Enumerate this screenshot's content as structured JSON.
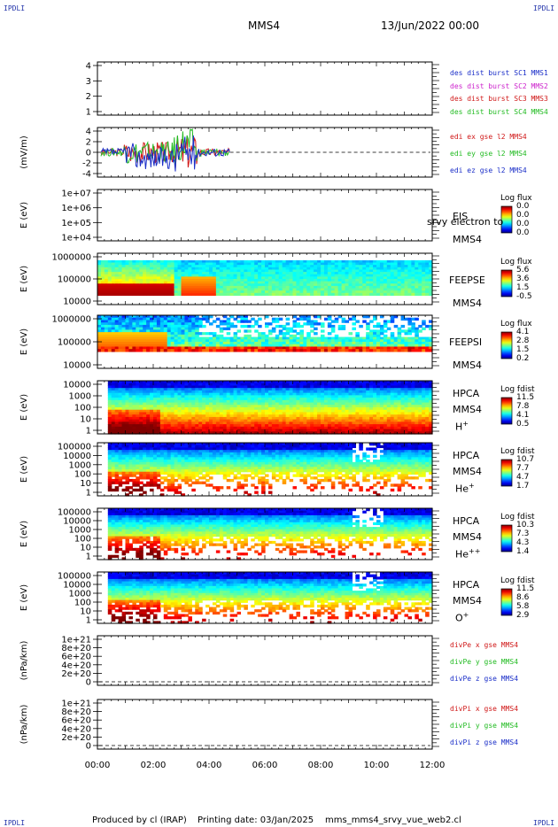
{
  "corner_label": "IPDLI",
  "header": {
    "title": "MMS4",
    "datetime": "13/Jun/2022 00:00"
  },
  "legend_colors": {
    "red": "#d01818",
    "green": "#22bb22",
    "blue": "#1a2ec8",
    "magenta": "#cc22cc"
  },
  "chart_data": [
    {
      "type": "line",
      "panel": "dist-burst",
      "ylabel": "",
      "yticks": [
        "4",
        "3",
        "2",
        "1"
      ],
      "ylim": [
        0.5,
        4.5
      ],
      "series": [
        {
          "name": "des dist burst SC1 MMS1",
          "color": "blue"
        },
        {
          "name": "des dist burst SC2 MMS2",
          "color": "magenta"
        },
        {
          "name": "des dist burst SC3 MMS3",
          "color": "red"
        },
        {
          "name": "des dist burst SC4 MMS4",
          "color": "green"
        }
      ]
    },
    {
      "type": "line",
      "panel": "edi-e-field",
      "ylabel": "(mV/m)",
      "yticks": [
        "4",
        "2",
        "0",
        "-2",
        "-4"
      ],
      "ylim": [
        -5,
        5
      ],
      "x_data_end": "04:45",
      "series": [
        {
          "name": "edi ex gse l2 MMS4",
          "color": "red"
        },
        {
          "name": "edi ey gse l2 MMS4",
          "color": "green"
        },
        {
          "name": "edi ez gse l2 MMS4",
          "color": "blue"
        }
      ]
    },
    {
      "type": "heatmap",
      "panel": "eis",
      "ylabel": "E (eV)",
      "yticks": [
        "1e+07",
        "1e+06",
        "1e+05",
        "1e+04"
      ],
      "instrument": "EIS",
      "spacecraft": "MMS4",
      "overlay_text": "srvy electron to",
      "colorbar_title": "Log flux",
      "colorbar_ticks": [
        "0.0",
        "0.0",
        "0.0",
        "0.0"
      ]
    },
    {
      "type": "heatmap",
      "panel": "feepse",
      "ylabel": "E (eV)",
      "yticks": [
        "1000000",
        "100000",
        "10000"
      ],
      "instrument": "FEEPSE",
      "spacecraft": "MMS4",
      "colorbar_title": "Log flux",
      "colorbar_ticks": [
        "5.6",
        "3.6",
        "1.5",
        "-0.5"
      ]
    },
    {
      "type": "heatmap",
      "panel": "feepsi",
      "ylabel": "E (eV)",
      "yticks": [
        "1000000",
        "100000",
        "10000"
      ],
      "instrument": "FEEPSI",
      "spacecraft": "MMS4",
      "colorbar_title": "Log flux",
      "colorbar_ticks": [
        "4.1",
        "2.8",
        "1.5",
        "0.2"
      ]
    },
    {
      "type": "heatmap",
      "panel": "hpca-h",
      "ylabel": "E (eV)",
      "yticks": [
        "10000",
        "1000",
        "100",
        "10",
        "1"
      ],
      "instrument": "HPCA",
      "spacecraft": "MMS4",
      "species": "H",
      "species_sup": "+",
      "colorbar_title": "Log fdist",
      "colorbar_ticks": [
        "11.5",
        "7.8",
        "4.1",
        "0.5"
      ]
    },
    {
      "type": "heatmap",
      "panel": "hpca-he1",
      "ylabel": "E (eV)",
      "yticks": [
        "100000",
        "10000",
        "1000",
        "100",
        "10",
        "1"
      ],
      "instrument": "HPCA",
      "spacecraft": "MMS4",
      "species": "He",
      "species_sup": "+",
      "colorbar_title": "Log fdist",
      "colorbar_ticks": [
        "10.7",
        "7.7",
        "4.7",
        "1.7"
      ]
    },
    {
      "type": "heatmap",
      "panel": "hpca-he2",
      "ylabel": "E (eV)",
      "yticks": [
        "100000",
        "10000",
        "1000",
        "100",
        "10",
        "1"
      ],
      "instrument": "HPCA",
      "spacecraft": "MMS4",
      "species": "He",
      "species_sup": "++",
      "colorbar_title": "Log fdist",
      "colorbar_ticks": [
        "10.3",
        "7.3",
        "4.3",
        "1.4"
      ]
    },
    {
      "type": "heatmap",
      "panel": "hpca-o",
      "ylabel": "E (eV)",
      "yticks": [
        "100000",
        "10000",
        "1000",
        "100",
        "10",
        "1"
      ],
      "instrument": "HPCA",
      "spacecraft": "MMS4",
      "species": "O",
      "species_sup": "+",
      "colorbar_title": "Log fdist",
      "colorbar_ticks": [
        "11.5",
        "8.6",
        "5.8",
        "2.9"
      ]
    },
    {
      "type": "line",
      "panel": "divpe",
      "ylabel": "(nPa/km)",
      "yticks": [
        "1e+21",
        "8e+20",
        "6e+20",
        "4e+20",
        "2e+20",
        "0"
      ],
      "ylim": [
        0,
        1e+21
      ],
      "series": [
        {
          "name": "divPe x gse MMS4",
          "color": "red"
        },
        {
          "name": "divPe y gse MMS4",
          "color": "green"
        },
        {
          "name": "divPe z gse MMS4",
          "color": "blue"
        }
      ]
    },
    {
      "type": "line",
      "panel": "divpi",
      "ylabel": "(nPa/km)",
      "yticks": [
        "1e+21",
        "8e+20",
        "6e+20",
        "4e+20",
        "2e+20",
        "0"
      ],
      "ylim": [
        0,
        1e+21
      ],
      "series": [
        {
          "name": "divPi x gse MMS4",
          "color": "red"
        },
        {
          "name": "divPi y gse MMS4",
          "color": "green"
        },
        {
          "name": "divPi z gse MMS4",
          "color": "blue"
        }
      ]
    }
  ],
  "x_axis": {
    "ticks": [
      "00:00",
      "02:00",
      "04:00",
      "06:00",
      "08:00",
      "10:00",
      "12:00"
    ],
    "xlim": [
      "00:00",
      "12:00"
    ]
  },
  "footer": {
    "produced_by": "Produced by cl (IRAP)",
    "printing_date": "Printing date: 03/Jan/2025",
    "filename": "mms_mms4_srvy_vue_web2.cl"
  }
}
